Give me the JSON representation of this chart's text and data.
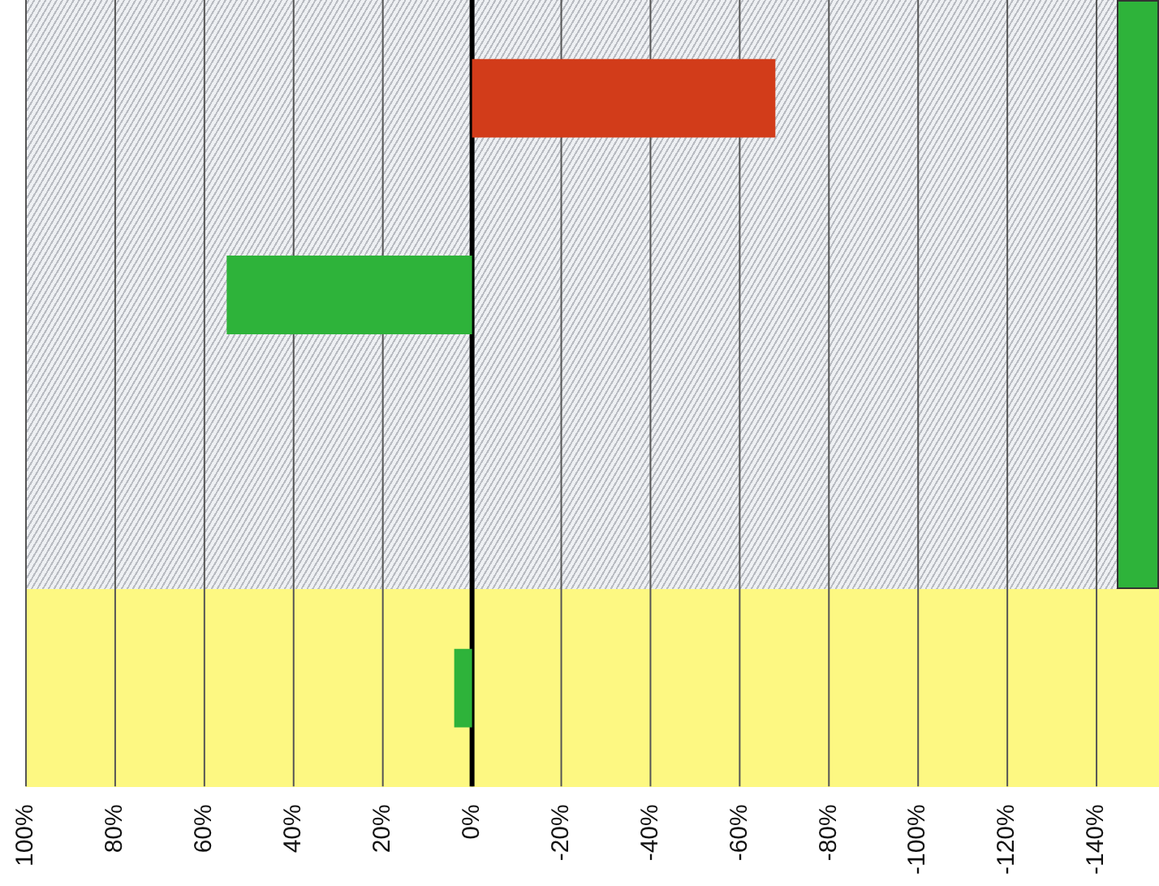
{
  "chart_data": {
    "type": "bar",
    "orientation": "horizontal",
    "categories": [
      null,
      null,
      null,
      null
    ],
    "values": [
      -68,
      55,
      null,
      4
    ],
    "colors": [
      "#d23c1a",
      "#2eb33a",
      "#2eb33a",
      "#2eb33a"
    ],
    "xlim": [
      100,
      -154
    ],
    "xticks": [
      {
        "value": 100,
        "label": "100%"
      },
      {
        "value": 80,
        "label": "80%"
      },
      {
        "value": 60,
        "label": "60%"
      },
      {
        "value": 40,
        "label": "40%"
      },
      {
        "value": 20,
        "label": "20%"
      },
      {
        "value": 0,
        "label": "0%"
      },
      {
        "value": -20,
        "label": "-20%"
      },
      {
        "value": -40,
        "label": "-40%"
      },
      {
        "value": -60,
        "label": "-60%"
      },
      {
        "value": -80,
        "label": "-80%"
      },
      {
        "value": -100,
        "label": "-100%"
      },
      {
        "value": -120,
        "label": "-120%"
      },
      {
        "value": -140,
        "label": "-140%"
      }
    ],
    "ref_lines": [
      {
        "axis": "x",
        "value": 0,
        "color": "#000000"
      }
    ],
    "grid": "x"
  }
}
